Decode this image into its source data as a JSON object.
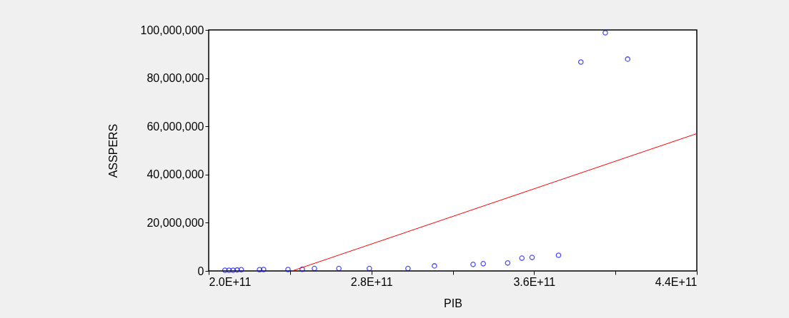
{
  "chart_data": {
    "type": "scatter",
    "xlabel": "PIB",
    "ylabel": "ASSPERS",
    "xlim": [
      200000000000,
      440000000000
    ],
    "xticks": [
      {
        "value": 200000000000,
        "label": "2.0E+11"
      },
      {
        "value": 240000000000,
        "label": null
      },
      {
        "value": 280000000000,
        "label": "2.8E+11"
      },
      {
        "value": 320000000000,
        "label": null
      },
      {
        "value": 360000000000,
        "label": "3.6E+11"
      },
      {
        "value": 400000000000,
        "label": null
      },
      {
        "value": 440000000000,
        "label": "4.4E+11"
      }
    ],
    "ylim": [
      0,
      100000000
    ],
    "yticks": [
      {
        "value": 0,
        "label": "0"
      },
      {
        "value": 20000000,
        "label": "20,000,000"
      },
      {
        "value": 40000000,
        "label": "40,000,000"
      },
      {
        "value": 60000000,
        "label": "60,000,000"
      },
      {
        "value": 80000000,
        "label": "80,000,000"
      },
      {
        "value": 100000000,
        "label": "100,000,000"
      }
    ],
    "marker": "circle",
    "grid": false,
    "series": [
      {
        "color": "#0000ff",
        "x": [
          208000000000,
          210000000000,
          212000000000,
          214000000000,
          216000000000,
          225000000000,
          227000000000,
          239000000000,
          246000000000,
          252000000000,
          264000000000,
          279000000000,
          298000000000,
          311000000000,
          330000000000,
          335000000000,
          347000000000,
          354000000000,
          359000000000,
          372000000000,
          383000000000,
          395000000000,
          406000000000
        ],
        "values": [
          300000,
          300000,
          300000,
          400000,
          500000,
          500000,
          600000,
          600000,
          700000,
          1000000,
          1000000,
          1000000,
          1000000,
          2100000,
          2700000,
          3000000,
          3300000,
          5300000,
          5600000,
          6500000,
          86700000,
          98800000,
          87900000
        ]
      },
      {
        "type": "line",
        "marker": "none",
        "color": "#ff0000",
        "x": [
          241000000000,
          440000000000
        ],
        "values": [
          0,
          57000000
        ]
      }
    ]
  }
}
